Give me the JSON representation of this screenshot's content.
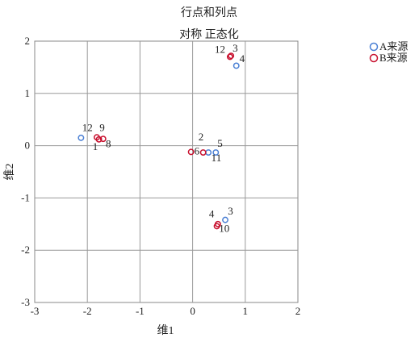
{
  "chart_data": {
    "type": "scatter",
    "title": "行点和列点",
    "subtitle": "对称 正态化",
    "xlabel": "维1",
    "ylabel": "维2",
    "xlim": [
      -3,
      2
    ],
    "ylim": [
      -3,
      2
    ],
    "xticks": [
      "-3",
      "-2",
      "-1",
      "0",
      "1",
      "2"
    ],
    "yticks": [
      "2",
      "1",
      "0",
      "-1",
      "-2",
      "-3"
    ],
    "grid": true,
    "legend_position": "top-right",
    "series": [
      {
        "name": "A来源",
        "color": "#4a7fd4",
        "points": [
          {
            "x": 0.83,
            "y": 1.53
          },
          {
            "x": -2.12,
            "y": 0.15
          },
          {
            "x": 0.44,
            "y": -0.13
          },
          {
            "x": 0.3,
            "y": -0.13
          },
          {
            "x": 0.62,
            "y": -1.42
          }
        ]
      },
      {
        "name": "B来源",
        "color": "#c8102e",
        "points": [
          {
            "x": 0.71,
            "y": 1.7
          },
          {
            "x": 0.73,
            "y": 1.72
          },
          {
            "x": -1.82,
            "y": 0.16
          },
          {
            "x": -1.78,
            "y": 0.12
          },
          {
            "x": -1.7,
            "y": 0.13
          },
          {
            "x": -0.03,
            "y": -0.12
          },
          {
            "x": 0.2,
            "y": -0.13
          },
          {
            "x": 0.48,
            "y": -1.5
          },
          {
            "x": 0.46,
            "y": -1.54
          }
        ]
      }
    ],
    "point_labels": [
      {
        "text": "12",
        "x": 0.52,
        "y": 1.78
      },
      {
        "text": "3",
        "x": 0.81,
        "y": 1.8
      },
      {
        "text": "4",
        "x": 0.94,
        "y": 1.6
      },
      {
        "text": "12",
        "x": -2.0,
        "y": 0.28
      },
      {
        "text": "9",
        "x": -1.72,
        "y": 0.28
      },
      {
        "text": "1",
        "x": -1.85,
        "y": -0.08
      },
      {
        "text": "8",
        "x": -1.6,
        "y": -0.03
      },
      {
        "text": "2",
        "x": 0.16,
        "y": 0.1
      },
      {
        "text": "5",
        "x": 0.52,
        "y": -0.02
      },
      {
        "text": "6",
        "x": 0.08,
        "y": -0.17
      },
      {
        "text": "11",
        "x": 0.45,
        "y": -0.3
      },
      {
        "text": "4",
        "x": 0.36,
        "y": -1.37
      },
      {
        "text": "3",
        "x": 0.72,
        "y": -1.32
      },
      {
        "text": "10",
        "x": 0.6,
        "y": -1.65
      }
    ]
  }
}
